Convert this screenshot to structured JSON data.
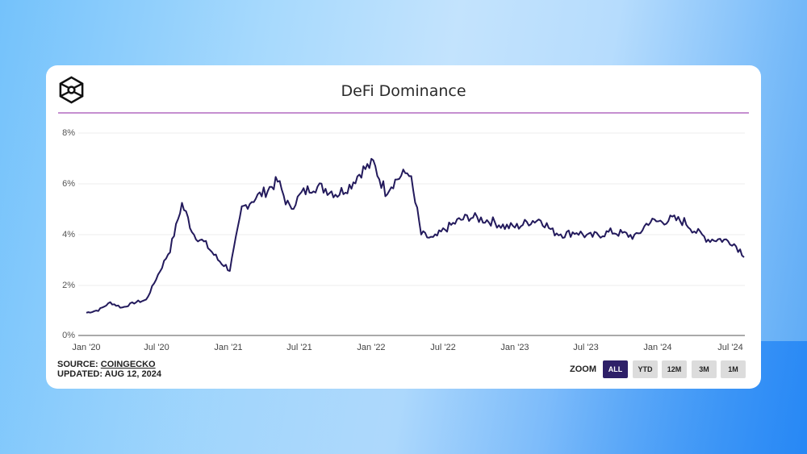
{
  "card": {
    "title": "DeFi Dominance",
    "logo_icon": "cube-logo-icon",
    "source_prefix": "SOURCE: ",
    "source_name": "COINGECKO",
    "updated": "UPDATED: AUG 12, 2024"
  },
  "zoom": {
    "label": "ZOOM",
    "buttons": [
      {
        "label": "ALL",
        "active": true
      },
      {
        "label": "YTD",
        "active": false
      },
      {
        "label": "12M",
        "active": false
      },
      {
        "label": "3M",
        "active": false
      },
      {
        "label": "1M",
        "active": false
      }
    ]
  },
  "colors": {
    "line": "#231a5c",
    "title_rule": "#c58fd0",
    "active_button": "#2e2068",
    "inactive_button": "#dcdcdc"
  },
  "chart_data": {
    "type": "line",
    "title": "DeFi Dominance",
    "xlabel": "",
    "ylabel": "",
    "ylim": [
      0,
      8
    ],
    "yticks": [
      "0%",
      "2%",
      "4%",
      "6%",
      "8%"
    ],
    "xticks": [
      "Jan '20",
      "Jul '20",
      "Jan '21",
      "Jul '21",
      "Jan '22",
      "Jul '22",
      "Jan '23",
      "Jul '23",
      "Jan '24",
      "Jul '24"
    ],
    "grid": true,
    "legend": "none",
    "series": [
      {
        "name": "DeFi Dominance (%)",
        "x": [
          "2020-01",
          "2020-02",
          "2020-03",
          "2020-04",
          "2020-05",
          "2020-06",
          "2020-07",
          "2020-08",
          "2020-09",
          "2020-10",
          "2020-11",
          "2020-12",
          "2021-01",
          "2021-02",
          "2021-03",
          "2021-04",
          "2021-05",
          "2021-06",
          "2021-07",
          "2021-08",
          "2021-09",
          "2021-10",
          "2021-11",
          "2021-12",
          "2022-01",
          "2022-02",
          "2022-03",
          "2022-04",
          "2022-05",
          "2022-06",
          "2022-07",
          "2022-08",
          "2022-09",
          "2022-10",
          "2022-11",
          "2022-12",
          "2023-01",
          "2023-02",
          "2023-03",
          "2023-04",
          "2023-05",
          "2023-06",
          "2023-07",
          "2023-08",
          "2023-09",
          "2023-10",
          "2023-11",
          "2023-12",
          "2024-01",
          "2024-02",
          "2024-03",
          "2024-04",
          "2024-05",
          "2024-06",
          "2024-07",
          "2024-08"
        ],
        "values": [
          0.9,
          1.0,
          1.3,
          1.1,
          1.3,
          1.4,
          2.4,
          3.4,
          5.2,
          4.0,
          3.6,
          3.0,
          2.6,
          5.0,
          5.4,
          5.7,
          6.1,
          5.0,
          5.6,
          5.9,
          5.8,
          5.6,
          5.9,
          6.5,
          6.8,
          5.7,
          6.2,
          6.5,
          4.0,
          3.8,
          4.2,
          4.5,
          4.7,
          4.6,
          4.5,
          4.3,
          4.3,
          4.5,
          4.6,
          4.1,
          4.0,
          4.1,
          3.9,
          4.0,
          4.1,
          4.0,
          3.9,
          4.5,
          4.5,
          4.6,
          4.5,
          4.1,
          3.8,
          3.8,
          3.7,
          3.2
        ]
      }
    ]
  }
}
